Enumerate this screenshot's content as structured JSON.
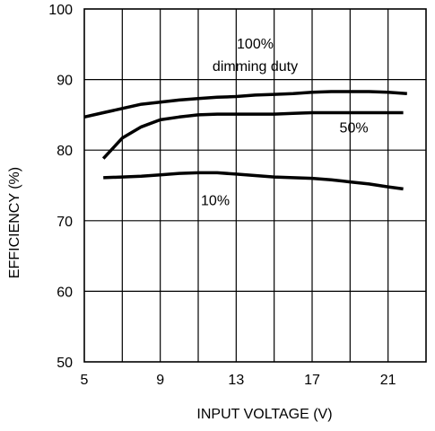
{
  "chart_data": {
    "type": "line",
    "title": "",
    "xlabel": "INPUT VOLTAGE (V)",
    "ylabel": "EFFICIENCY (%)",
    "xlim": [
      5,
      23
    ],
    "ylim": [
      50,
      100
    ],
    "xticks": [
      5,
      9,
      13,
      17,
      21
    ],
    "yticks": [
      50,
      60,
      70,
      80,
      90,
      100
    ],
    "grid": true,
    "series": [
      {
        "name": "100%",
        "x": [
          5,
          6,
          7,
          8,
          9,
          10,
          11,
          12,
          13,
          14,
          15,
          16,
          17,
          18,
          19,
          20,
          21,
          22
        ],
        "y": [
          84.7,
          85.3,
          85.9,
          86.5,
          86.8,
          87.1,
          87.3,
          87.5,
          87.6,
          87.8,
          87.9,
          88.0,
          88.2,
          88.3,
          88.3,
          88.3,
          88.2,
          88.0
        ]
      },
      {
        "name": "50%",
        "x": [
          6,
          7,
          8,
          9,
          10,
          11,
          12,
          13,
          14,
          15,
          16,
          17,
          18,
          19,
          20,
          21,
          21.8
        ],
        "y": [
          78.8,
          81.7,
          83.3,
          84.3,
          84.7,
          85.0,
          85.1,
          85.1,
          85.1,
          85.1,
          85.2,
          85.3,
          85.3,
          85.3,
          85.3,
          85.3,
          85.3
        ]
      },
      {
        "name": "10%",
        "x": [
          6,
          7,
          8,
          9,
          10,
          11,
          12,
          13,
          14,
          15,
          16,
          17,
          18,
          19,
          20,
          21,
          21.8
        ],
        "y": [
          76.1,
          76.2,
          76.3,
          76.5,
          76.7,
          76.8,
          76.8,
          76.6,
          76.4,
          76.2,
          76.1,
          76.0,
          75.8,
          75.5,
          75.2,
          74.8,
          74.5
        ]
      }
    ],
    "annotations": [
      {
        "text": "100%",
        "x": 14.0,
        "y": 94.4
      },
      {
        "text": "dimming duty",
        "x": 14.0,
        "y": 91.2
      },
      {
        "text": "50%",
        "x": 19.2,
        "y": 82.5
      },
      {
        "text": "10%",
        "x": 11.9,
        "y": 72.2
      }
    ]
  }
}
